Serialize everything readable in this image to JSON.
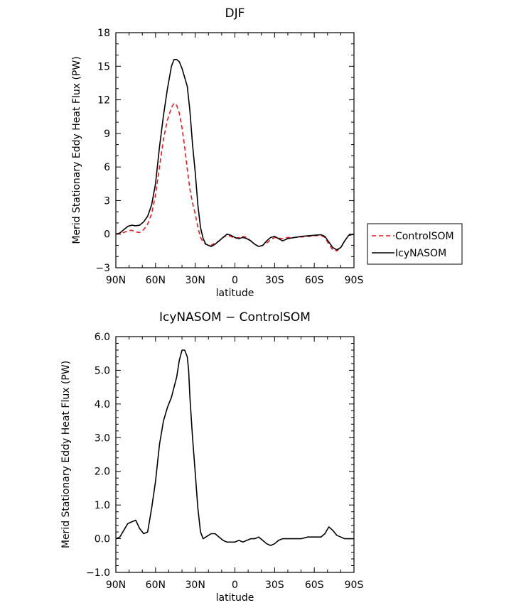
{
  "chart_data": [
    {
      "type": "line",
      "title": "DJF",
      "xlabel": "latitude",
      "ylabel": "Merid Stationary Eddy Heat Flux (PW)",
      "xlim": [
        90,
        -90
      ],
      "ylim": [
        -3,
        18
      ],
      "xticks": [
        90,
        60,
        30,
        0,
        -30,
        -60,
        -90
      ],
      "xtick_labels": [
        "90N",
        "60N",
        "30N",
        "0",
        "30S",
        "60S",
        "90S"
      ],
      "yticks": [
        -3,
        0,
        3,
        6,
        9,
        12,
        15,
        18
      ],
      "ytick_labels": [
        "−3",
        "0",
        "3",
        "6",
        "9",
        "12",
        "15",
        "18"
      ],
      "legend_position": "right",
      "series": [
        {
          "name": "ControlSOM",
          "color": "#e8191c",
          "dash": "dashed",
          "x": [
            90,
            87,
            84,
            81,
            78,
            75,
            72,
            69,
            66,
            63,
            60,
            57,
            54,
            51,
            48,
            46,
            44,
            42,
            40,
            38,
            36,
            34,
            32,
            30,
            28,
            26,
            24,
            22,
            20,
            18,
            15,
            12,
            9,
            6,
            3,
            0,
            -3,
            -6,
            -9,
            -12,
            -15,
            -18,
            -21,
            -24,
            -27,
            -30,
            -33,
            -36,
            -40,
            -45,
            -50,
            -55,
            -60,
            -65,
            -68,
            -71,
            -74,
            -77,
            -80,
            -83,
            -86,
            -90
          ],
          "y": [
            0,
            0.05,
            0.15,
            0.3,
            0.35,
            0.2,
            0.15,
            0.4,
            0.9,
            1.8,
            3.5,
            6.0,
            8.5,
            10.2,
            11.3,
            11.7,
            11.5,
            10.8,
            9.5,
            7.8,
            5.8,
            4.0,
            2.8,
            1.8,
            0.6,
            -0.3,
            -0.7,
            -0.9,
            -1.0,
            -1.0,
            -0.8,
            -0.6,
            -0.3,
            -0.1,
            -0.2,
            -0.4,
            -0.3,
            -0.2,
            -0.3,
            -0.6,
            -0.9,
            -1.1,
            -1.0,
            -0.8,
            -0.5,
            -0.3,
            -0.35,
            -0.4,
            -0.3,
            -0.3,
            -0.25,
            -0.2,
            -0.15,
            -0.1,
            -0.3,
            -0.9,
            -1.4,
            -1.5,
            -1.2,
            -0.6,
            -0.1,
            0
          ]
        },
        {
          "name": "IcyNASOM",
          "color": "#000000",
          "dash": "solid",
          "x": [
            90,
            87,
            84,
            81,
            78,
            75,
            72,
            69,
            66,
            63,
            60,
            57,
            54,
            51,
            48,
            46,
            44,
            42,
            40,
            38,
            36,
            34,
            32,
            30,
            28,
            26,
            24,
            22,
            20,
            18,
            15,
            12,
            9,
            6,
            3,
            0,
            -3,
            -6,
            -9,
            -12,
            -15,
            -18,
            -21,
            -24,
            -27,
            -30,
            -33,
            -36,
            -40,
            -45,
            -50,
            -55,
            -60,
            -65,
            -68,
            -71,
            -74,
            -77,
            -80,
            -83,
            -86,
            -90
          ],
          "y": [
            0,
            0.1,
            0.4,
            0.7,
            0.8,
            0.75,
            0.8,
            1.1,
            1.6,
            2.6,
            4.5,
            7.8,
            10.6,
            13.0,
            15.0,
            15.6,
            15.6,
            15.4,
            14.8,
            14.0,
            13.2,
            11.0,
            8.0,
            5.5,
            2.6,
            0.6,
            -0.4,
            -0.9,
            -1.0,
            -1.1,
            -0.9,
            -0.6,
            -0.3,
            0,
            -0.1,
            -0.3,
            -0.4,
            -0.3,
            -0.4,
            -0.6,
            -0.9,
            -1.1,
            -1.0,
            -0.6,
            -0.3,
            -0.2,
            -0.4,
            -0.6,
            -0.4,
            -0.3,
            -0.2,
            -0.15,
            -0.1,
            -0.05,
            -0.2,
            -0.7,
            -1.2,
            -1.4,
            -1.2,
            -0.6,
            -0.1,
            0
          ]
        }
      ]
    },
    {
      "type": "line",
      "title": "IcyNASOM − ControlSOM",
      "xlabel": "latitude",
      "ylabel": "Merid Stationary Eddy Heat Flux (PW)",
      "xlim": [
        90,
        -90
      ],
      "ylim": [
        -1.0,
        6.0
      ],
      "xticks": [
        90,
        60,
        30,
        0,
        -30,
        -60,
        -90
      ],
      "xtick_labels": [
        "90N",
        "60N",
        "30N",
        "0",
        "30S",
        "60S",
        "90S"
      ],
      "yticks": [
        -1,
        0,
        1,
        2,
        3,
        4,
        5,
        6
      ],
      "ytick_labels": [
        "−1.0",
        "0.0",
        "1.0",
        "2.0",
        "3.0",
        "4.0",
        "5.0",
        "6.0"
      ],
      "series": [
        {
          "color": "#000000",
          "dash": "solid",
          "x": [
            90,
            87,
            84,
            81,
            78,
            75,
            72,
            69,
            66,
            63,
            60,
            57,
            54,
            51,
            48,
            46,
            44,
            42,
            40,
            38,
            36,
            35,
            34,
            32,
            30,
            28,
            26,
            24,
            22,
            20,
            18,
            15,
            12,
            9,
            6,
            3,
            0,
            -3,
            -6,
            -9,
            -12,
            -15,
            -18,
            -21,
            -24,
            -27,
            -30,
            -33,
            -36,
            -40,
            -45,
            -50,
            -55,
            -60,
            -65,
            -68,
            -71,
            -74,
            -77,
            -80,
            -83,
            -86,
            -90
          ],
          "y": [
            0.0,
            0.05,
            0.25,
            0.45,
            0.5,
            0.55,
            0.3,
            0.15,
            0.2,
            0.9,
            1.7,
            2.8,
            3.5,
            3.9,
            4.2,
            4.5,
            4.8,
            5.3,
            5.6,
            5.6,
            5.4,
            5.0,
            4.2,
            3.0,
            1.95,
            0.9,
            0.2,
            0.0,
            0.05,
            0.1,
            0.15,
            0.15,
            0.05,
            -0.05,
            -0.1,
            -0.1,
            -0.1,
            -0.05,
            -0.1,
            -0.05,
            0.0,
            0.0,
            0.05,
            -0.05,
            -0.15,
            -0.2,
            -0.15,
            -0.05,
            0.0,
            0.0,
            0.0,
            0.0,
            0.05,
            0.05,
            0.05,
            0.15,
            0.35,
            0.25,
            0.1,
            0.05,
            0.0,
            0.0,
            0.0
          ]
        }
      ]
    }
  ]
}
